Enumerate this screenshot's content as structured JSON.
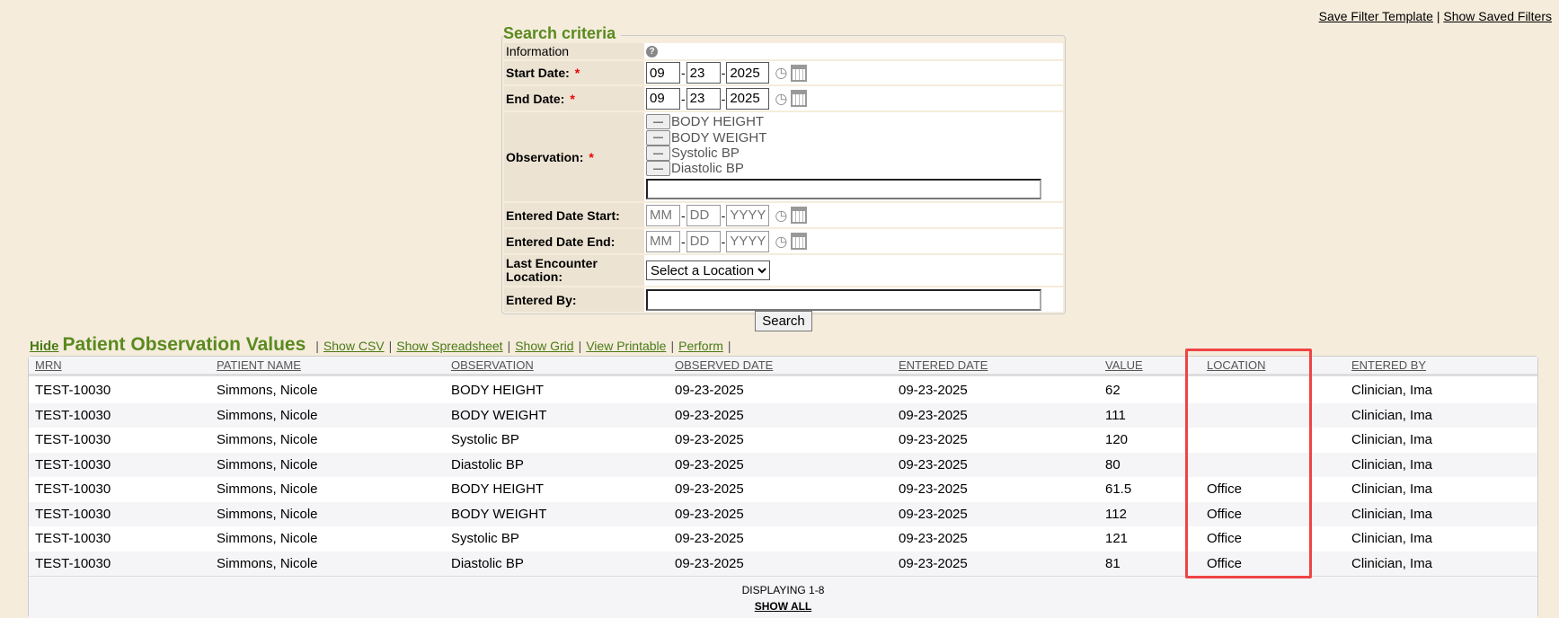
{
  "top_links": {
    "save_template": "Save Filter Template",
    "sep": "|",
    "show_saved": "Show Saved Filters"
  },
  "search": {
    "legend": "Search criteria",
    "information_label": "Information",
    "start_date": {
      "label": "Start Date:",
      "mm": "09",
      "dd": "23",
      "yyyy": "2025"
    },
    "end_date": {
      "label": "End Date:",
      "mm": "09",
      "dd": "23",
      "yyyy": "2025"
    },
    "observation": {
      "label": "Observation:",
      "items": [
        "BODY HEIGHT",
        "BODY WEIGHT",
        "Systolic BP",
        "Diastolic BP"
      ],
      "remove_label": "—"
    },
    "entered_start": {
      "label": "Entered Date Start:",
      "mm_ph": "MM",
      "dd_ph": "DD",
      "yyyy_ph": "YYYY"
    },
    "entered_end": {
      "label": "Entered Date End:",
      "mm_ph": "MM",
      "dd_ph": "DD",
      "yyyy_ph": "YYYY"
    },
    "location": {
      "label": "Last Encounter Location:",
      "selected": "Select a Location"
    },
    "entered_by": {
      "label": "Entered By:"
    },
    "required_mark": "*",
    "button": "Search"
  },
  "results": {
    "hide": "Hide",
    "title": "Patient Observation Values",
    "links": [
      "Show CSV",
      "Show Spreadsheet",
      "Show Grid",
      "View Printable",
      "Perform"
    ],
    "columns": [
      "MRN",
      "PATIENT NAME",
      "OBSERVATION",
      "OBSERVED DATE",
      "ENTERED DATE",
      "VALUE",
      "LOCATION",
      "ENTERED BY"
    ],
    "rows": [
      [
        "TEST-10030",
        "Simmons, Nicole",
        "BODY HEIGHT",
        "09-23-2025",
        "09-23-2025",
        "62",
        "",
        "Clinician, Ima"
      ],
      [
        "TEST-10030",
        "Simmons, Nicole",
        "BODY WEIGHT",
        "09-23-2025",
        "09-23-2025",
        "111",
        "",
        "Clinician, Ima"
      ],
      [
        "TEST-10030",
        "Simmons, Nicole",
        "Systolic BP",
        "09-23-2025",
        "09-23-2025",
        "120",
        "",
        "Clinician, Ima"
      ],
      [
        "TEST-10030",
        "Simmons, Nicole",
        "Diastolic BP",
        "09-23-2025",
        "09-23-2025",
        "80",
        "",
        "Clinician, Ima"
      ],
      [
        "TEST-10030",
        "Simmons, Nicole",
        "BODY HEIGHT",
        "09-23-2025",
        "09-23-2025",
        "61.5",
        "Office",
        "Clinician, Ima"
      ],
      [
        "TEST-10030",
        "Simmons, Nicole",
        "BODY WEIGHT",
        "09-23-2025",
        "09-23-2025",
        "112",
        "Office",
        "Clinician, Ima"
      ],
      [
        "TEST-10030",
        "Simmons, Nicole",
        "Systolic BP",
        "09-23-2025",
        "09-23-2025",
        "121",
        "Office",
        "Clinician, Ima"
      ],
      [
        "TEST-10030",
        "Simmons, Nicole",
        "Diastolic BP",
        "09-23-2025",
        "09-23-2025",
        "81",
        "Office",
        "Clinician, Ima"
      ]
    ],
    "displaying": "DISPLAYING 1-8",
    "show_all": "SHOW ALL"
  },
  "colors": {
    "accent_green": "#5a8a1e",
    "highlight": "#ef4444",
    "background": "#f5ecdc"
  }
}
